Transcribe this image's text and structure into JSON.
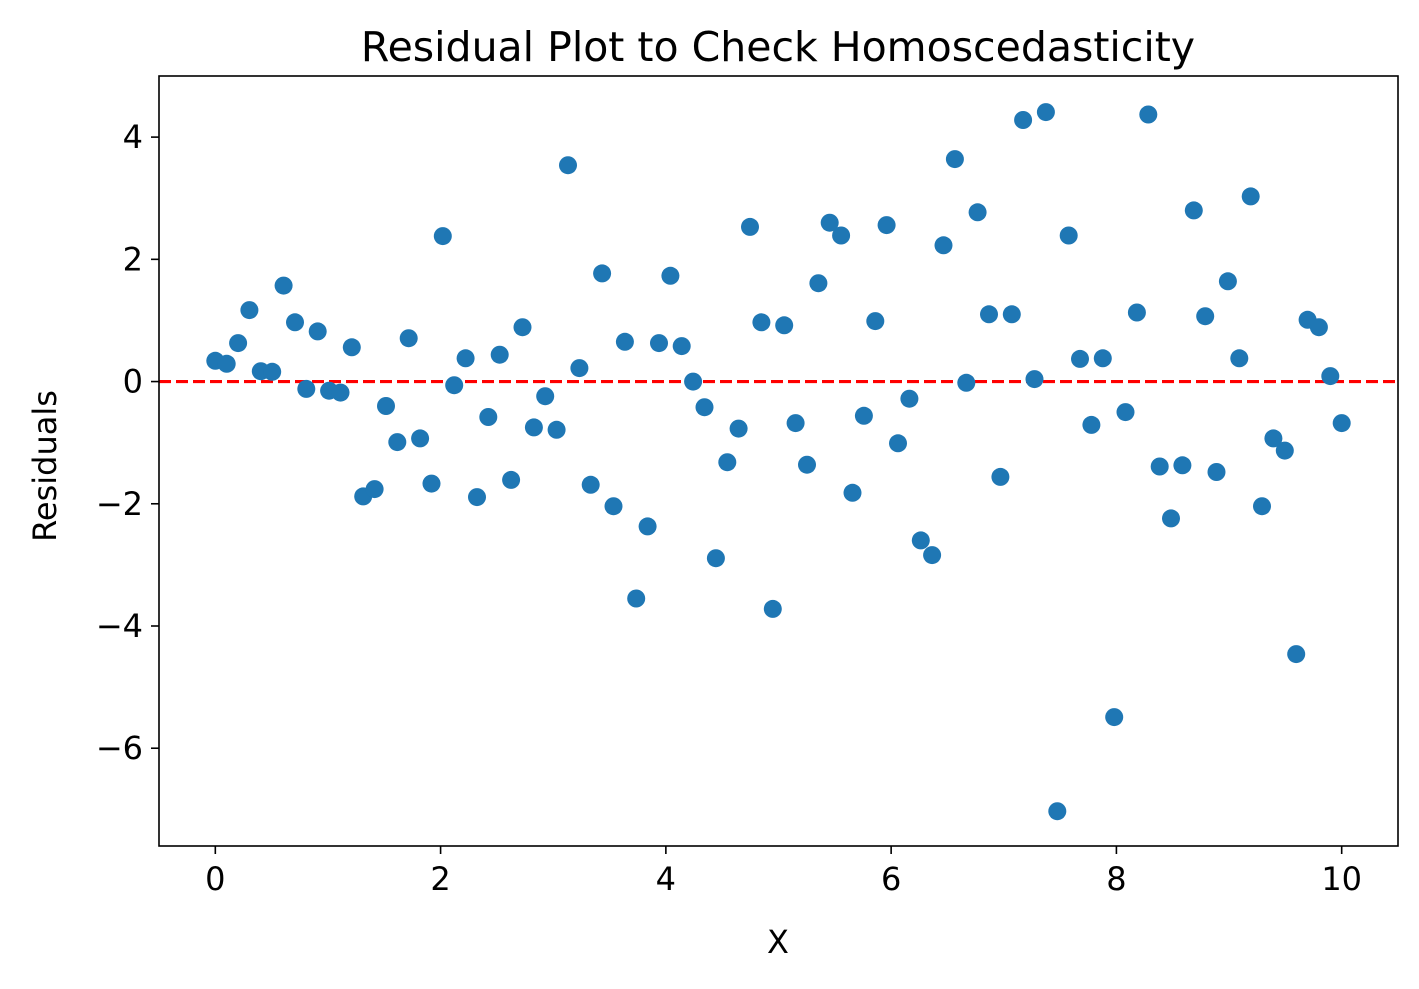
{
  "chart_data": {
    "type": "scatter",
    "title": "Residual Plot to Check Homoscedasticity",
    "xlabel": "X",
    "ylabel": "Residuals",
    "xlim": [
      -0.5,
      10.5
    ],
    "ylim": [
      -7.6,
      5.0
    ],
    "xticks": [
      0,
      2,
      4,
      6,
      8,
      10
    ],
    "yticks": [
      -6,
      -4,
      -2,
      0,
      2,
      4
    ],
    "xtick_labels": [
      "0",
      "2",
      "4",
      "6",
      "8",
      "10"
    ],
    "ytick_labels": [
      "−6",
      "−4",
      "−2",
      "0",
      "2",
      "4"
    ],
    "grid": false,
    "marker_color": "#1f77b4",
    "reference_line": {
      "y": 0,
      "color": "#ff0000",
      "style": "dashed"
    },
    "x": [
      0.0,
      0.101,
      0.202,
      0.303,
      0.404,
      0.505,
      0.606,
      0.707,
      0.808,
      0.909,
      1.01,
      1.111,
      1.212,
      1.313,
      1.414,
      1.515,
      1.616,
      1.717,
      1.818,
      1.919,
      2.02,
      2.121,
      2.222,
      2.323,
      2.424,
      2.525,
      2.626,
      2.727,
      2.828,
      2.929,
      3.03,
      3.131,
      3.232,
      3.333,
      3.434,
      3.535,
      3.636,
      3.737,
      3.838,
      3.939,
      4.04,
      4.141,
      4.242,
      4.343,
      4.444,
      4.545,
      4.646,
      4.747,
      4.848,
      4.949,
      5.051,
      5.152,
      5.253,
      5.354,
      5.455,
      5.556,
      5.657,
      5.758,
      5.859,
      5.96,
      6.061,
      6.162,
      6.263,
      6.364,
      6.465,
      6.566,
      6.667,
      6.768,
      6.869,
      6.97,
      7.071,
      7.172,
      7.273,
      7.374,
      7.475,
      7.576,
      7.677,
      7.778,
      7.879,
      7.98,
      8.081,
      8.182,
      8.283,
      8.384,
      8.485,
      8.586,
      8.687,
      8.788,
      8.889,
      8.99,
      9.091,
      9.192,
      9.293,
      9.394,
      9.495,
      9.596,
      9.697,
      9.798,
      9.899,
      10.0
    ],
    "y": [
      0.34,
      0.29,
      0.63,
      1.17,
      0.17,
      0.16,
      1.57,
      0.97,
      -0.12,
      0.82,
      -0.15,
      -0.18,
      0.56,
      -1.88,
      -1.76,
      -0.4,
      -0.99,
      0.71,
      -0.93,
      -1.67,
      2.38,
      -0.06,
      0.38,
      -1.89,
      -0.58,
      0.44,
      -1.61,
      0.89,
      -0.75,
      -0.24,
      -0.79,
      3.54,
      0.22,
      -1.69,
      1.77,
      -2.04,
      0.65,
      -3.55,
      -2.37,
      0.63,
      1.73,
      0.58,
      0.0,
      -0.42,
      -2.89,
      -1.32,
      -0.77,
      2.53,
      0.97,
      -3.72,
      0.92,
      -0.68,
      -1.36,
      1.61,
      2.6,
      2.39,
      -1.82,
      -0.56,
      0.99,
      2.56,
      -1.01,
      -0.28,
      -2.6,
      -2.84,
      2.23,
      3.64,
      -0.02,
      2.77,
      1.1,
      -1.56,
      1.1,
      4.28,
      0.04,
      4.41,
      -7.03,
      2.39,
      0.37,
      -0.71,
      0.38,
      -5.49,
      -0.5,
      1.13,
      4.37,
      -1.39,
      -2.24,
      -1.37,
      2.8,
      1.07,
      -1.48,
      1.64,
      0.38,
      3.03,
      -2.04,
      -0.93,
      -1.13,
      -4.46,
      1.01,
      0.89,
      0.09,
      -0.68
    ]
  }
}
